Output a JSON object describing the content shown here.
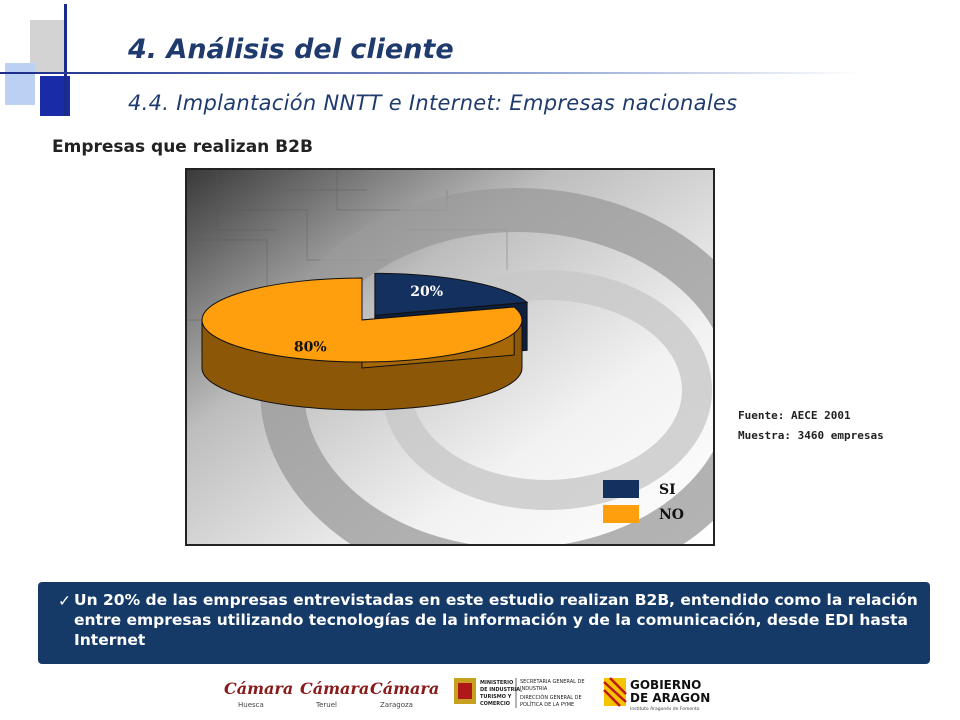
{
  "header": {
    "title": "4. Análisis del cliente",
    "subtitle": "4.4. Implantación NNTT e Internet: Empresas nacionales"
  },
  "section_title": "Empresas que realizan B2B",
  "chart_data": {
    "type": "pie",
    "categories": [
      "SI",
      "NO"
    ],
    "values": [
      20,
      80
    ],
    "data_labels": [
      "20%",
      "80%"
    ],
    "colors": [
      "#14305e",
      "#ff9f0d"
    ],
    "legend": "bottom-right",
    "style": "3d-exploded"
  },
  "source": {
    "fuente": "Fuente: AECE 2001",
    "muestra": "Muestra: 3460 empresas"
  },
  "note": {
    "check": "✓",
    "text": "Un 20% de las empresas entrevistadas en este estudio realizan B2B, entendido como la relación entre empresas utilizando tecnologías de la información y de la comunicación, desde EDI hasta Internet"
  },
  "logos": {
    "camara": "Cámara",
    "huesca": "Huesca",
    "teruel": "Teruel",
    "zaragoza": "Zaragoza",
    "ministerio_1": "MINISTERIO",
    "ministerio_2": "DE INDUSTRIA,",
    "ministerio_3": "TURISMO Y",
    "ministerio_4": "COMERCIO",
    "secretaria_1": "SECRETARIA GENERAL DE",
    "secretaria_2": "INDUSTRIA",
    "secretaria_3": "DIRECCIÓN GENERAL DE",
    "secretaria_4": "POLÍTICA DE LA PYME",
    "gobierno_1": "GOBIERNO",
    "gobierno_2": "DE ARAGON",
    "gobierno_3": "Instituto Aragonés de Fomento"
  }
}
